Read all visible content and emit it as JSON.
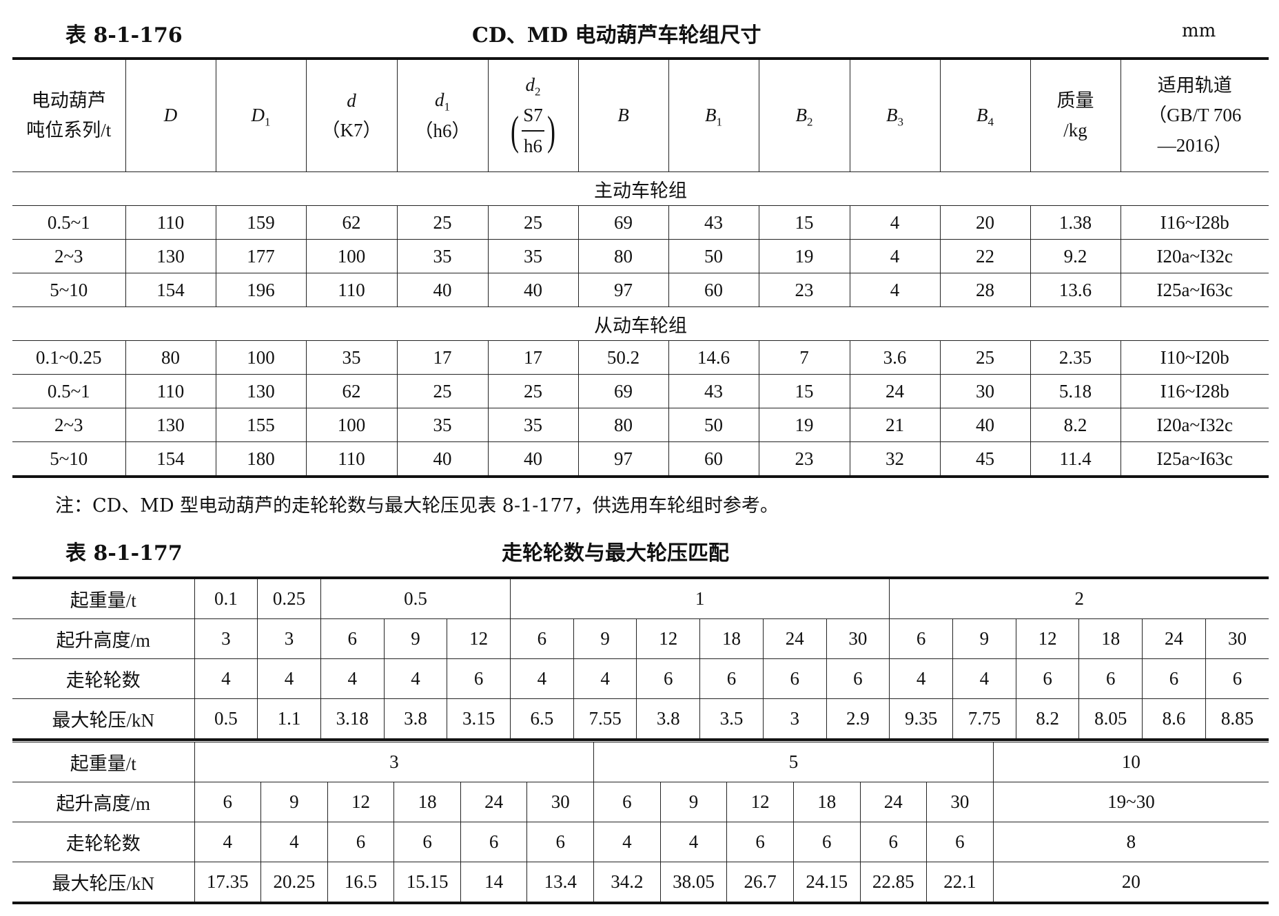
{
  "table1": {
    "number": "表 8-1-176",
    "title": "CD、MD 电动葫芦车轮组尺寸",
    "unit": "mm",
    "headers": {
      "series_line1": "电动葫芦",
      "series_line2": "吨位系列/t",
      "D": "D",
      "D1": "D",
      "D1_sub": "1",
      "d": "d",
      "d_tol": "（K7）",
      "d1": "d",
      "d1_sub": "1",
      "d1_tol": "（h6）",
      "d2": "d",
      "d2_sub": "2",
      "d2_tol_top": "S7",
      "d2_tol_bottom": "h6",
      "B": "B",
      "B1": "B",
      "B1_sub": "1",
      "B2": "B",
      "B2_sub": "2",
      "B3": "B",
      "B3_sub": "3",
      "B4": "B",
      "B4_sub": "4",
      "mass_line1": "质量",
      "mass_line2": "/kg",
      "rail_line1": "适用轨道",
      "rail_line2": "（GB/T 706",
      "rail_line3": "—2016）"
    },
    "sections": [
      {
        "title": "主动车轮组",
        "rows": [
          [
            "0.5~1",
            "110",
            "159",
            "62",
            "25",
            "25",
            "69",
            "43",
            "15",
            "4",
            "20",
            "1.38",
            "I16~I28b"
          ],
          [
            "2~3",
            "130",
            "177",
            "100",
            "35",
            "35",
            "80",
            "50",
            "19",
            "4",
            "22",
            "9.2",
            "I20a~I32c"
          ],
          [
            "5~10",
            "154",
            "196",
            "110",
            "40",
            "40",
            "97",
            "60",
            "23",
            "4",
            "28",
            "13.6",
            "I25a~I63c"
          ]
        ]
      },
      {
        "title": "从动车轮组",
        "rows": [
          [
            "0.1~0.25",
            "80",
            "100",
            "35",
            "17",
            "17",
            "50.2",
            "14.6",
            "7",
            "3.6",
            "25",
            "2.35",
            "I10~I20b"
          ],
          [
            "0.5~1",
            "110",
            "130",
            "62",
            "25",
            "25",
            "69",
            "43",
            "15",
            "24",
            "30",
            "5.18",
            "I16~I28b"
          ],
          [
            "2~3",
            "130",
            "155",
            "100",
            "35",
            "35",
            "80",
            "50",
            "19",
            "21",
            "40",
            "8.2",
            "I20a~I32c"
          ],
          [
            "5~10",
            "154",
            "180",
            "110",
            "40",
            "40",
            "97",
            "60",
            "23",
            "32",
            "45",
            "11.4",
            "I25a~I63c"
          ]
        ]
      }
    ],
    "note": "注：CD、MD 型电动葫芦的走轮轮数与最大轮压见表 8-1-177，供选用车轮组时参考。"
  },
  "table2": {
    "number": "表 8-1-177",
    "title": "走轮轮数与最大轮压匹配",
    "labels": [
      "起重量/t",
      "起升高度/m",
      "走轮轮数",
      "最大轮压/kN"
    ],
    "part1": {
      "capacities": [
        {
          "v": "0.1",
          "span": 1
        },
        {
          "v": "0.25",
          "span": 1
        },
        {
          "v": "0.5",
          "span": 3
        },
        {
          "v": "1",
          "span": 6
        },
        {
          "v": "2",
          "span": 6
        }
      ],
      "heights": [
        "3",
        "3",
        "6",
        "9",
        "12",
        "6",
        "9",
        "12",
        "18",
        "24",
        "30",
        "6",
        "9",
        "12",
        "18",
        "24",
        "30"
      ],
      "wheels": [
        "4",
        "4",
        "4",
        "4",
        "6",
        "4",
        "4",
        "6",
        "6",
        "6",
        "6",
        "4",
        "4",
        "6",
        "6",
        "6",
        "6"
      ],
      "loads": [
        "0.5",
        "1.1",
        "3.18",
        "3.8",
        "3.15",
        "6.5",
        "7.55",
        "3.8",
        "3.5",
        "3",
        "2.9",
        "9.35",
        "7.75",
        "8.2",
        "8.05",
        "8.6",
        "8.85"
      ]
    },
    "part2": {
      "capacities": [
        {
          "v": "3",
          "span": 6
        },
        {
          "v": "5",
          "span": 6
        },
        {
          "v": "10",
          "span": 1
        }
      ],
      "heights": [
        "6",
        "9",
        "12",
        "18",
        "24",
        "30",
        "6",
        "9",
        "12",
        "18",
        "24",
        "30",
        "19~30"
      ],
      "wheels": [
        "4",
        "4",
        "6",
        "6",
        "6",
        "6",
        "4",
        "4",
        "6",
        "6",
        "6",
        "6",
        "8"
      ],
      "loads": [
        "17.35",
        "20.25",
        "16.5",
        "15.15",
        "14",
        "13.4",
        "34.2",
        "38.05",
        "26.7",
        "24.15",
        "22.85",
        "22.1",
        "20"
      ]
    }
  }
}
